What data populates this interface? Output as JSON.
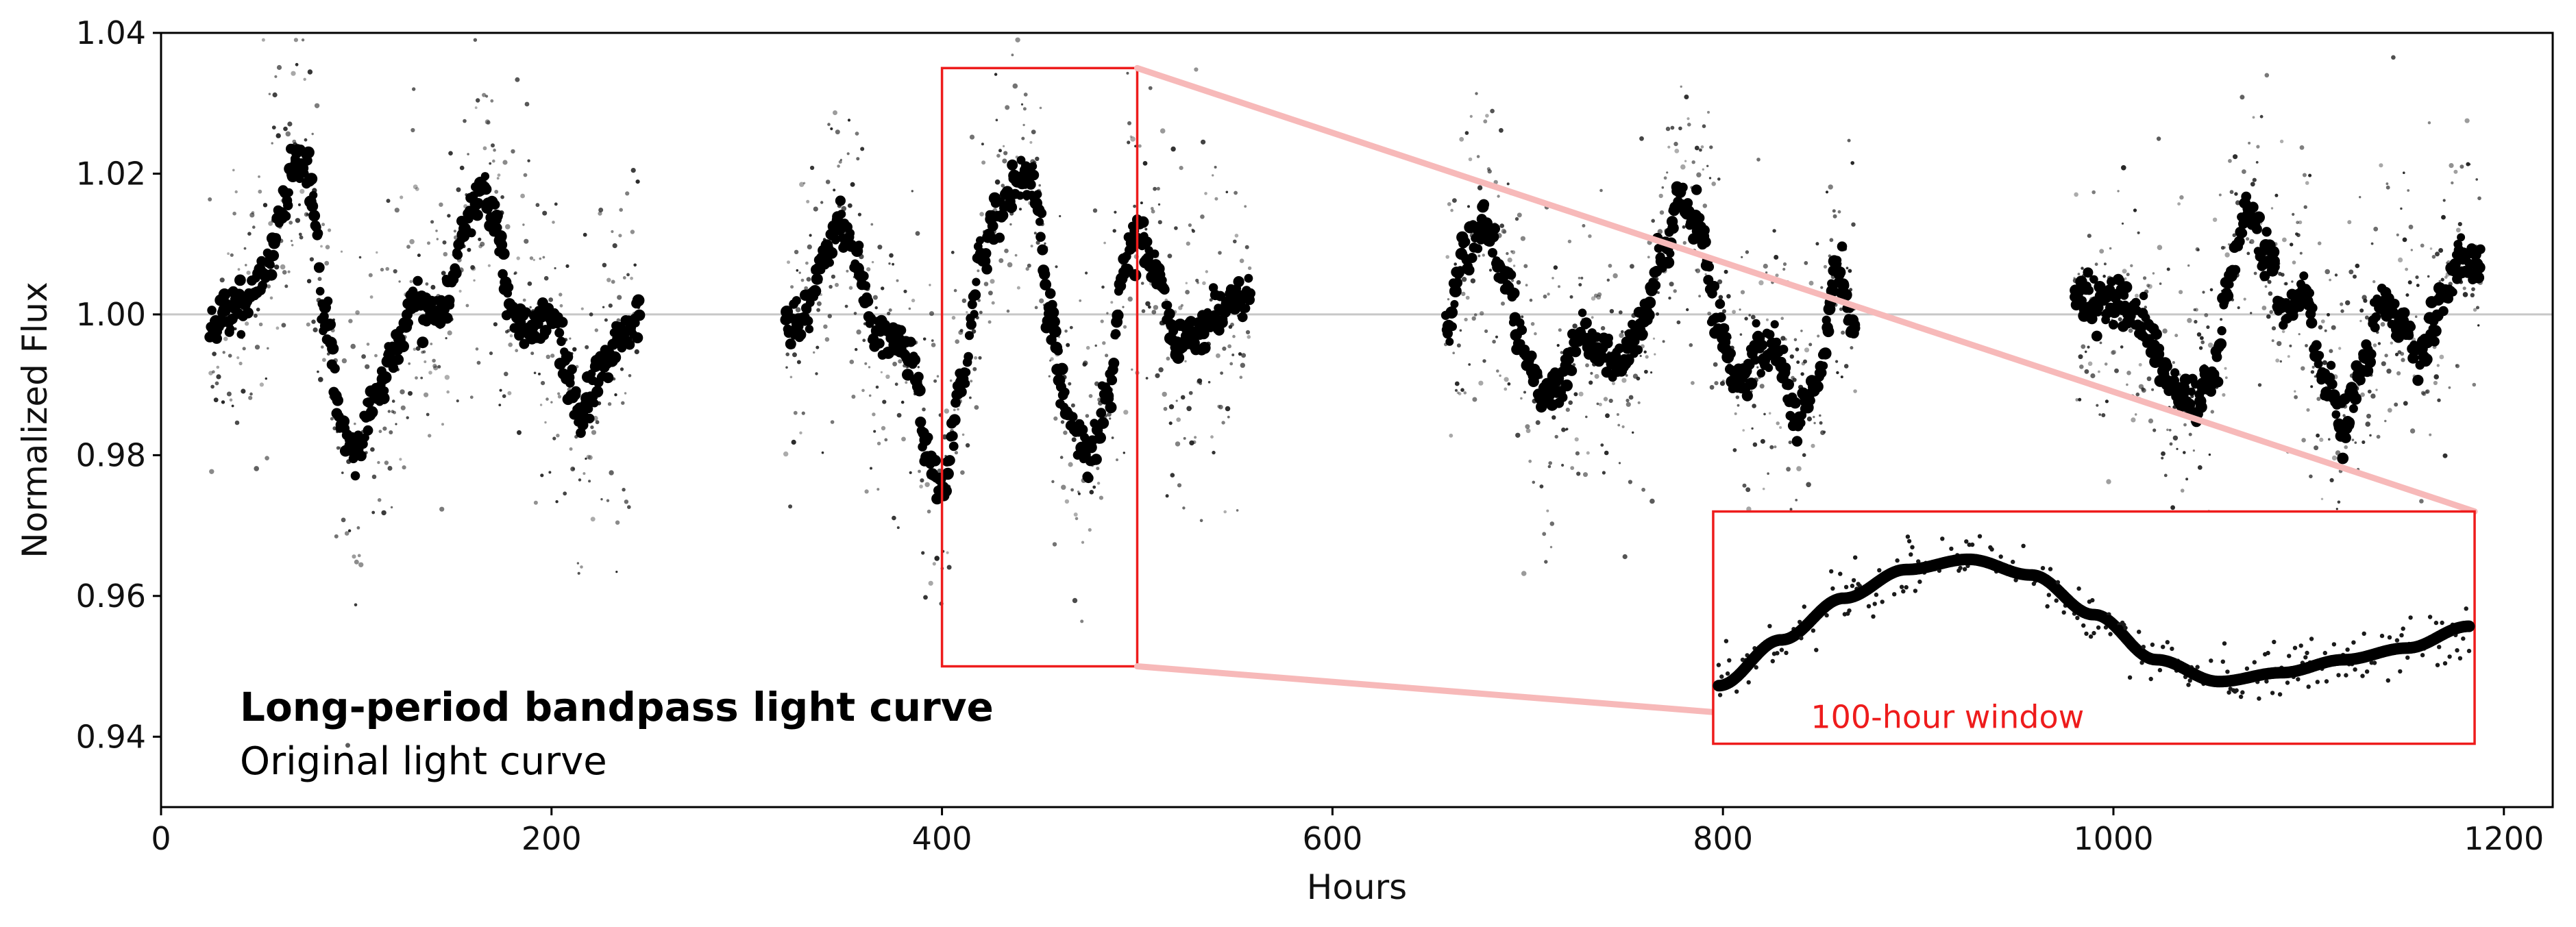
{
  "chart_data": {
    "type": "scatter",
    "xlabel": "Hours",
    "ylabel": "Normalized Flux",
    "xlim": [
      0,
      1225
    ],
    "ylim": [
      0.93,
      1.04
    ],
    "x_ticks": [
      0,
      200,
      400,
      600,
      800,
      1000,
      1200
    ],
    "x_tick_labels": [
      "0",
      "200",
      "400",
      "600",
      "800",
      "1000",
      "1200"
    ],
    "y_ticks": [
      0.94,
      0.96,
      0.98,
      1.0,
      1.02,
      1.04
    ],
    "y_tick_labels": [
      "0.94",
      "0.96",
      "0.98",
      "1.00",
      "1.02",
      "1.04"
    ],
    "reference_line_y": 1.0,
    "grid": false,
    "legend_position": "bottom-left",
    "colors": {
      "bandpass": "#000000",
      "original": "#1a1a1a",
      "highlight": "#ee1c1c",
      "connector": "#f7b9b9",
      "reference": "#c8c8c8"
    },
    "series": [
      {
        "name": "Long-period bandpass light curve",
        "segments": [
          {
            "x": [
              25,
              35,
              45,
              55,
              62,
              70,
              75,
              85,
              92,
              100,
              110,
              120,
              130,
              138,
              145,
              155,
              165,
              172,
              180,
              190,
              200,
              210,
              215,
              225,
              235,
              245
            ],
            "y": [
              0.998,
              1.0,
              1.002,
              1.006,
              1.015,
              1.023,
              1.02,
              0.998,
              0.985,
              0.98,
              0.988,
              0.995,
              1.002,
              1.0,
              1.0,
              1.012,
              1.018,
              1.012,
              1.0,
              0.998,
              1.0,
              0.99,
              0.985,
              0.992,
              0.997,
              0.999
            ]
          },
          {
            "x": [
              320,
              330,
              340,
              348,
              355,
              365,
              375,
              385,
              392,
              400,
              410,
              420,
              430,
              440,
              448,
              455,
              465,
              475,
              485,
              492,
              500,
              510,
              520,
              530,
              540,
              550,
              558
            ],
            "y": [
              0.998,
              1.0,
              1.008,
              1.014,
              1.009,
              0.998,
              0.997,
              0.993,
              0.98,
              0.975,
              0.99,
              1.008,
              1.015,
              1.02,
              1.018,
              1.0,
              0.985,
              0.98,
              0.988,
              1.005,
              1.012,
              1.006,
              0.996,
              0.997,
              1.0,
              1.002,
              1.003
            ]
          },
          {
            "x": [
              658,
              668,
              678,
              688,
              698,
              708,
              718,
              728,
              738,
              748,
              758,
              768,
              778,
              788,
              798,
              808,
              818,
              828,
              838,
              848,
              858,
              868
            ],
            "y": [
              0.998,
              1.008,
              1.012,
              1.006,
              0.995,
              0.988,
              0.99,
              0.998,
              0.995,
              0.993,
              0.998,
              1.008,
              1.016,
              1.012,
              0.998,
              0.99,
              0.995,
              0.995,
              0.985,
              0.99,
              1.007,
              0.998
            ]
          },
          {
            "x": [
              980,
              990,
              1000,
              1010,
              1020,
              1030,
              1040,
              1050,
              1060,
              1068,
              1078,
              1088,
              1098,
              1108,
              1118,
              1128,
              1138,
              1148,
              1158,
              1168,
              1178,
              1188
            ],
            "y": [
              1.003,
              1.002,
              1.002,
              1.0,
              0.996,
              0.99,
              0.987,
              0.99,
              1.005,
              1.015,
              1.01,
              1.0,
              1.004,
              0.99,
              0.984,
              0.993,
              1.002,
              0.998,
              0.995,
              1.002,
              1.008,
              1.007
            ]
          }
        ]
      },
      {
        "name": "Original light curve",
        "noise_amplitude": 0.025
      }
    ],
    "highlight_window": {
      "x_range": [
        400,
        500
      ],
      "y_range": [
        0.95,
        1.035
      ],
      "label": "100-hour window"
    },
    "inset": {
      "label": "100-hour window",
      "x_range": [
        400,
        500
      ],
      "curve_y": [
        0.9815,
        0.9882,
        0.9943,
        0.9985,
        1.0,
        0.9977,
        0.9919,
        0.9853,
        0.9821,
        0.9834,
        0.9853,
        0.987,
        0.9902
      ]
    },
    "legend": {
      "bold_label": "Long-period bandpass light curve",
      "normal_label": "Original light curve"
    }
  }
}
